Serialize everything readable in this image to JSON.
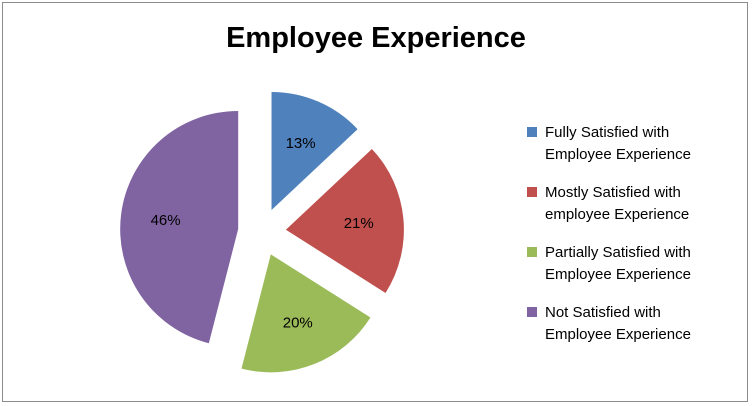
{
  "chart_data": {
    "type": "pie",
    "title": "Employee Experience",
    "slices": [
      {
        "label": "Fully Satisfied with Employee Experience",
        "legend_lines": [
          "Fully Satisfied with",
          "Employee Experience"
        ],
        "value": 13,
        "value_label": "13%",
        "color": "#4F81BD"
      },
      {
        "label": "Mostly Satisfied with employee Experience",
        "legend_lines": [
          "Mostly Satisfied with",
          "employee Experience"
        ],
        "value": 21,
        "value_label": "21%",
        "color": "#C0504D"
      },
      {
        "label": "Partially Satisfied with Employee Experience",
        "legend_lines": [
          "Partially Satisfied with",
          "Employee Experience"
        ],
        "value": 20,
        "value_label": "20%",
        "color": "#9BBB59"
      },
      {
        "label": "Not Satisfied with Employee Experience",
        "legend_lines": [
          "Not Satisfied with",
          "Employee Experience"
        ],
        "value": 46,
        "value_label": "46%",
        "color": "#8064A2"
      }
    ],
    "exploded": true,
    "legend_position": "right"
  }
}
